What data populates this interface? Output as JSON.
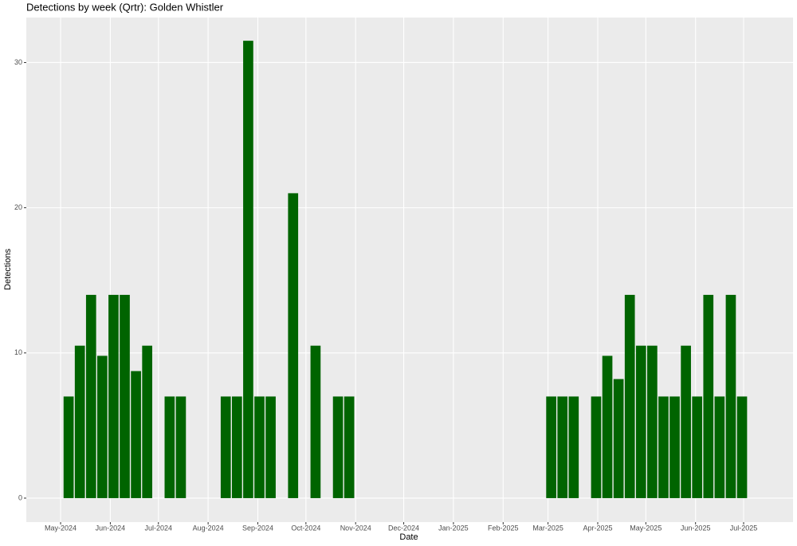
{
  "chart_data": {
    "type": "bar",
    "title": "Detections by week (Qrtr): Golden Whistler",
    "x_label": "Date",
    "y_label": "Detections",
    "color": "#006400",
    "grid": true,
    "x": [
      5,
      12,
      19,
      26,
      33,
      40,
      47,
      54,
      68,
      75,
      103,
      110,
      117,
      124,
      131,
      145,
      159,
      173,
      180,
      306,
      313,
      320,
      334,
      341,
      348,
      355,
      362,
      369,
      376,
      383,
      390,
      397,
      404,
      411,
      418,
      425
    ],
    "values": [
      7,
      10.5,
      14,
      9.8,
      14,
      14,
      8.75,
      10.5,
      7,
      7,
      7,
      7,
      31.5,
      7,
      7,
      21,
      10.5,
      7,
      7,
      7,
      7,
      7,
      7,
      9.8,
      8.2,
      14,
      10.5,
      10.5,
      7,
      7,
      10.5,
      7,
      14,
      7,
      14,
      7
    ],
    "xlim": [
      -21.4,
      456.8
    ],
    "xticks": [
      {
        "value": 0,
        "label": "May-2024"
      },
      {
        "value": 31,
        "label": "Jun-2024"
      },
      {
        "value": 61,
        "label": "Jul-2024"
      },
      {
        "value": 92,
        "label": "Aug-2024"
      },
      {
        "value": 123,
        "label": "Sep-2024"
      },
      {
        "value": 153,
        "label": "Oct-2024"
      },
      {
        "value": 184,
        "label": "Nov-2024"
      },
      {
        "value": 214,
        "label": "Dec-2024"
      },
      {
        "value": 245,
        "label": "Jan-2025"
      },
      {
        "value": 276,
        "label": "Feb-2025"
      },
      {
        "value": 304,
        "label": "Mar-2025"
      },
      {
        "value": 335,
        "label": "Apr-2025"
      },
      {
        "value": 365,
        "label": "May-2025"
      },
      {
        "value": 396,
        "label": "Jun-2025"
      },
      {
        "value": 426,
        "label": "Jul-2025"
      }
    ],
    "ylim": [
      -1.65,
      33.1
    ],
    "yticks": [
      0,
      10,
      20,
      30
    ]
  }
}
